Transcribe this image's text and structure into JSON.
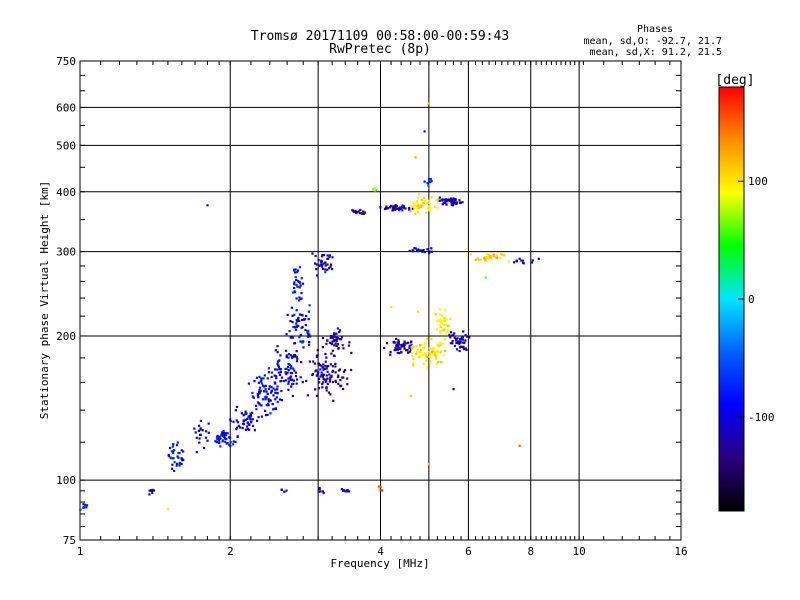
{
  "chart_data": {
    "type": "scatter",
    "title": "Tromsø 20171109 00:58:00-00:59:43",
    "subtitle": "RwPretec (8p)",
    "xlabel": "Frequency [MHz]",
    "ylabel": "Stationary phase Virtual Height [km]",
    "x_scale": "log",
    "y_scale": "log",
    "xlim": [
      1,
      16
    ],
    "ylim": [
      75,
      750
    ],
    "x_ticks": [
      1,
      2,
      4,
      6,
      8,
      10,
      16
    ],
    "x_tick_labels": [
      "1",
      "2",
      "4",
      "6",
      "8",
      "10",
      "16"
    ],
    "x_grid": [
      1,
      2,
      3,
      4,
      5,
      6,
      8,
      10,
      16
    ],
    "y_ticks": [
      75,
      100,
      200,
      300,
      400,
      500,
      600,
      750
    ],
    "y_tick_labels": [
      "75",
      "100",
      "200",
      "300",
      "400",
      "500",
      "600",
      "750"
    ],
    "y_grid": [
      100,
      200,
      300,
      400,
      500,
      600
    ],
    "grid": true,
    "annotation": {
      "title": "Phases",
      "line1": "mean, sd,O: -92.7, 21.7",
      "line2": "mean, sd,X:  91.2, 21.5"
    },
    "colorbar": {
      "label": "[deg]",
      "range": [
        -180,
        180
      ],
      "ticks": [
        100,
        0,
        -100
      ],
      "tick_labels": [
        "100",
        "0",
        "-100"
      ],
      "colors": [
        "#ff0000",
        "#ff8c00",
        "#ffff00",
        "#00ff00",
        "#00e5ff",
        "#0060ff",
        "#0000ff",
        "#2a0080",
        "#000000"
      ]
    },
    "clusters": [
      {
        "x": 1.02,
        "y": 88,
        "dx": 0.02,
        "dy": 1.5,
        "n": 8,
        "phase": -80
      },
      {
        "x": 1.39,
        "y": 95,
        "dx": 0.02,
        "dy": 1.0,
        "n": 10,
        "phase": -110
      },
      {
        "x": 1.55,
        "y": 112,
        "dx": 0.07,
        "dy": 6,
        "n": 35,
        "phase": -85
      },
      {
        "x": 1.75,
        "y": 125,
        "dx": 0.06,
        "dy": 8,
        "n": 20,
        "phase": -90
      },
      {
        "x": 1.95,
        "y": 122,
        "dx": 0.08,
        "dy": 4,
        "n": 45,
        "phase": -85
      },
      {
        "x": 2.15,
        "y": 133,
        "dx": 0.1,
        "dy": 6,
        "n": 50,
        "phase": -95
      },
      {
        "x": 2.35,
        "y": 150,
        "dx": 0.14,
        "dy": 12,
        "n": 85,
        "phase": -88
      },
      {
        "x": 2.6,
        "y": 170,
        "dx": 0.14,
        "dy": 16,
        "n": 85,
        "phase": -92
      },
      {
        "x": 2.75,
        "y": 210,
        "dx": 0.14,
        "dy": 22,
        "n": 60,
        "phase": -85
      },
      {
        "x": 2.75,
        "y": 255,
        "dx": 0.08,
        "dy": 20,
        "n": 30,
        "phase": -80
      },
      {
        "x": 3.05,
        "y": 165,
        "dx": 0.18,
        "dy": 14,
        "n": 60,
        "phase": -115
      },
      {
        "x": 3.25,
        "y": 195,
        "dx": 0.18,
        "dy": 10,
        "n": 50,
        "phase": -118
      },
      {
        "x": 3.3,
        "y": 165,
        "dx": 0.15,
        "dy": 8,
        "n": 35,
        "phase": -120
      },
      {
        "x": 3.1,
        "y": 285,
        "dx": 0.12,
        "dy": 12,
        "n": 35,
        "phase": -120
      },
      {
        "x": 3.6,
        "y": 362,
        "dx": 0.15,
        "dy": 5,
        "n": 15,
        "phase": -130
      },
      {
        "x": 3.05,
        "y": 95,
        "dx": 0.05,
        "dy": 1.2,
        "n": 6,
        "phase": -110
      },
      {
        "x": 3.4,
        "y": 95,
        "dx": 0.05,
        "dy": 1.0,
        "n": 8,
        "phase": -100
      },
      {
        "x": 2.55,
        "y": 95,
        "dx": 0.04,
        "dy": 1.0,
        "n": 4,
        "phase": -100
      },
      {
        "x": 4.3,
        "y": 370,
        "dx": 0.2,
        "dy": 5,
        "n": 40,
        "phase": -118
      },
      {
        "x": 4.9,
        "y": 375,
        "dx": 0.3,
        "dy": 12,
        "n": 45,
        "phase": 100
      },
      {
        "x": 5.55,
        "y": 382,
        "dx": 0.25,
        "dy": 6,
        "n": 50,
        "phase": -118
      },
      {
        "x": 4.4,
        "y": 190,
        "dx": 0.22,
        "dy": 6,
        "n": 55,
        "phase": -120
      },
      {
        "x": 5.0,
        "y": 185,
        "dx": 0.35,
        "dy": 10,
        "n": 70,
        "phase": 100
      },
      {
        "x": 5.35,
        "y": 210,
        "dx": 0.15,
        "dy": 14,
        "n": 40,
        "phase": 95
      },
      {
        "x": 5.75,
        "y": 195,
        "dx": 0.2,
        "dy": 8,
        "n": 45,
        "phase": -115
      },
      {
        "x": 4.8,
        "y": 302,
        "dx": 0.3,
        "dy": 4,
        "n": 20,
        "phase": -110
      },
      {
        "x": 6.7,
        "y": 292,
        "dx": 0.35,
        "dy": 5,
        "n": 35,
        "phase": 110
      },
      {
        "x": 7.7,
        "y": 285,
        "dx": 0.25,
        "dy": 4,
        "n": 10,
        "phase": -90
      },
      {
        "x": 5.0,
        "y": 420,
        "dx": 0.08,
        "dy": 8,
        "n": 8,
        "phase": -75
      },
      {
        "x": 3.9,
        "y": 400,
        "dx": 0.06,
        "dy": 10,
        "n": 5,
        "phase": 60
      },
      {
        "x": 4.0,
        "y": 96,
        "dx": 0.03,
        "dy": 1.0,
        "n": 5,
        "phase": 160
      }
    ],
    "points": [
      {
        "x": 1.8,
        "y": 375,
        "phase": -85
      },
      {
        "x": 5.0,
        "y": 612,
        "phase": 110
      },
      {
        "x": 4.9,
        "y": 535,
        "phase": -80
      },
      {
        "x": 4.7,
        "y": 472,
        "phase": 130
      },
      {
        "x": 1.5,
        "y": 87,
        "phase": 100
      },
      {
        "x": 7.6,
        "y": 118,
        "phase": 150
      },
      {
        "x": 5.0,
        "y": 108,
        "phase": 120
      },
      {
        "x": 5.6,
        "y": 155,
        "phase": -100
      },
      {
        "x": 8.3,
        "y": 290,
        "phase": -110
      },
      {
        "x": 3.1,
        "y": 272,
        "phase": -60
      },
      {
        "x": 4.6,
        "y": 150,
        "phase": 110
      },
      {
        "x": 4.2,
        "y": 230,
        "phase": 100
      },
      {
        "x": 4.75,
        "y": 225,
        "phase": 105
      },
      {
        "x": 6.5,
        "y": 265,
        "phase": 60
      }
    ]
  }
}
